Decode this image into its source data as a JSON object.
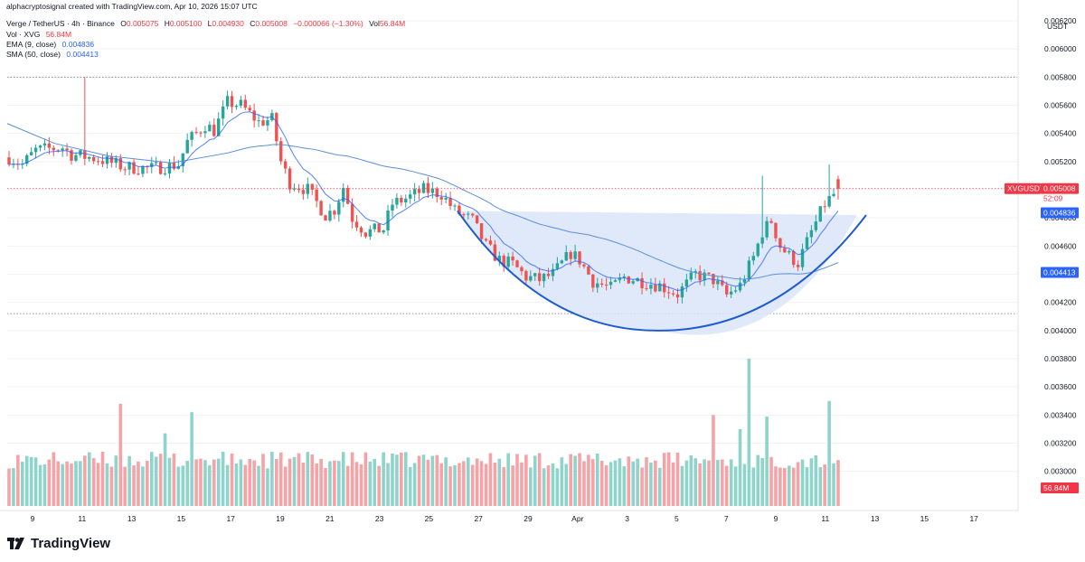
{
  "watermark": "alphacryptosignal created with TradingView.com, Apr 10, 2026 15:07 UTC",
  "header": {
    "symbol": "Verge / TetherUS · 4h · Binance",
    "open_label": "O",
    "open": "0.005075",
    "high_label": "H",
    "high": "0.005100",
    "low_label": "L",
    "low": "0.004930",
    "close_label": "C",
    "close": "0.005008",
    "change": "−0.000066 (−1.30%)",
    "vol_label": "Vol",
    "vol_value": "56.84M",
    "volume_indicator": "Vol · XVG",
    "volume_value": "56.84M",
    "ema_label": "EMA (9, close)",
    "ema_value": "0.004836",
    "sma_label": "SMA (50, close)",
    "sma_value": "0.004413"
  },
  "axis": {
    "unit": "USDT",
    "price_ticks": [
      "0.006200",
      "0.006000",
      "0.005800",
      "0.005600",
      "0.005400",
      "0.005200",
      "0.005000",
      "0.004800",
      "0.004600",
      "0.004400",
      "0.004200",
      "0.004000",
      "0.003800",
      "0.003600",
      "0.003400",
      "0.003200",
      "0.003000"
    ],
    "date_ticks": [
      "9",
      "11",
      "13",
      "15",
      "17",
      "19",
      "21",
      "23",
      "25",
      "27",
      "29",
      "Apr",
      "3",
      "5",
      "7",
      "9",
      "11",
      "13",
      "15",
      "17"
    ]
  },
  "badges": {
    "symbol": "XVGUSDT",
    "price": "0.005008",
    "countdown": "52:09",
    "ema": "0.004836",
    "sma": "0.004413",
    "volume": "56.84M"
  },
  "colors": {
    "up": "#26a69a",
    "down": "#ef5350",
    "vol_up": "#8fd4cb",
    "vol_down": "#f5a3a6",
    "ema": "#5b8fd9",
    "sma": "#2962ff",
    "cup": "#1e5bd1",
    "cup_fill": "#dbe5f8",
    "price_line": "#f23645",
    "resistance_dotted": "#787b86"
  },
  "brand": "TradingView",
  "chart_data": {
    "type": "candlestick",
    "timeframe": "4h",
    "price_axis": {
      "min": 0.003,
      "max": 0.0062,
      "tick_step": 0.0002
    },
    "x_start": "Mar 8, 2026",
    "x_end": "Apr 17, 2026",
    "candle_count": 128,
    "start_price": 0.00523,
    "candle_path": [
      [
        0,
        0.00523
      ],
      [
        3,
        0.00518
      ],
      [
        6,
        0.00528
      ],
      [
        12,
        0.0053
      ],
      [
        14,
        0.00525
      ],
      [
        20,
        0.00522
      ],
      [
        26,
        0.00516
      ],
      [
        32,
        0.00515
      ],
      [
        38,
        0.00518
      ],
      [
        40,
        0.00534
      ],
      [
        44,
        0.00546
      ],
      [
        46,
        0.00542
      ],
      [
        49,
        0.00562
      ],
      [
        52,
        0.0056
      ],
      [
        56,
        0.00548
      ],
      [
        59,
        0.0055
      ],
      [
        61,
        0.0052
      ],
      [
        63,
        0.00505
      ],
      [
        67,
        0.005
      ],
      [
        71,
        0.00482
      ],
      [
        73,
        0.00486
      ],
      [
        75,
        0.00502
      ],
      [
        77,
        0.0048
      ],
      [
        80,
        0.0047
      ],
      [
        84,
        0.00472
      ],
      [
        86,
        0.0049
      ],
      [
        90,
        0.00495
      ],
      [
        93,
        0.005
      ],
      [
        97,
        0.00497
      ],
      [
        100,
        0.00485
      ],
      [
        104,
        0.00478
      ],
      [
        107,
        0.0046
      ],
      [
        110,
        0.0045
      ],
      [
        113,
        0.00447
      ],
      [
        116,
        0.00438
      ],
      [
        119,
        0.00436
      ],
      [
        122,
        0.0044
      ],
      [
        126,
        0.00455
      ],
      [
        128,
        0.0045
      ],
      [
        131,
        0.00435
      ],
      [
        135,
        0.0043
      ],
      [
        138,
        0.00438
      ],
      [
        142,
        0.00435
      ],
      [
        146,
        0.00432
      ],
      [
        150,
        0.00426
      ],
      [
        154,
        0.0044
      ],
      [
        158,
        0.00436
      ],
      [
        161,
        0.00425
      ],
      [
        164,
        0.00432
      ],
      [
        167,
        0.00452
      ],
      [
        169,
        0.0047
      ],
      [
        171,
        0.00478
      ],
      [
        173,
        0.0046
      ],
      [
        175,
        0.00453
      ],
      [
        177,
        0.00448
      ],
      [
        180,
        0.0047
      ],
      [
        183,
        0.0049
      ],
      [
        186,
        0.005
      ]
    ],
    "spikes": {
      "17": 0.0058,
      "169": 0.0051,
      "184": 0.00518
    },
    "volume_spikes": {
      "25": 0.00348,
      "35": 0.00327,
      "41": 0.00342,
      "158": 0.0034,
      "164": 0.0033,
      "166": 0.0038,
      "170": 0.00339,
      "184": 0.0035
    },
    "last_candle": {
      "open": 0.005075,
      "high": 0.0051,
      "low": 0.00493,
      "close": 0.005008,
      "volume": "56.84M"
    },
    "ema_9_last": 0.004836,
    "sma_50_last": 0.004413,
    "resistance_levels": [
      0.0058,
      0.00412
    ],
    "cup_rim_level": 0.00482,
    "pattern": "cup (rounded bottom) with rim near 0.00482"
  }
}
